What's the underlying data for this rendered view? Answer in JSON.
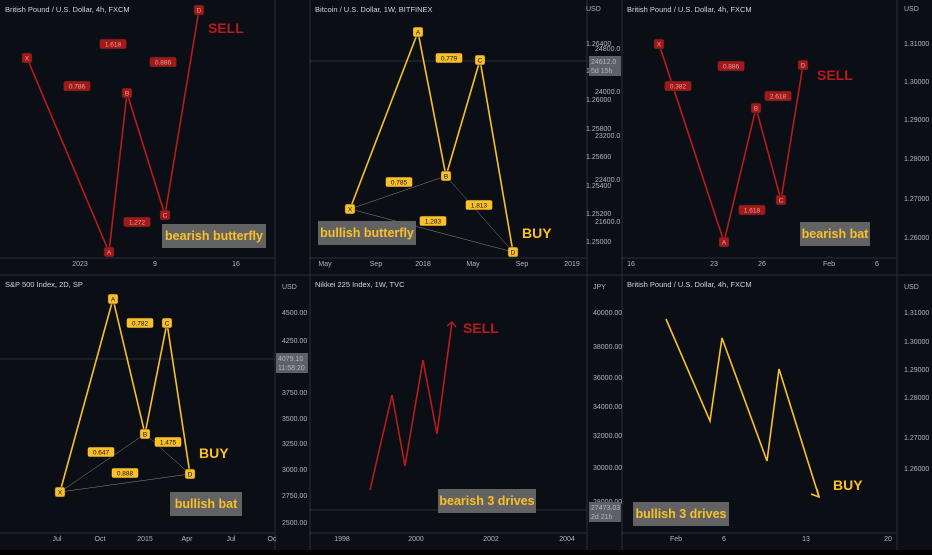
{
  "colors": {
    "background": "#0c0e15",
    "bearish": "#b71c1c",
    "bullish": "#f9c02a",
    "badge_bull_fill": "#f9c02a",
    "badge_bear_fill": "#a01a1a",
    "caption_box": "#6b6b6b",
    "caption_text": "#f9c02a"
  },
  "chart_data": [
    {
      "id": "p1",
      "type": "line",
      "header": "British Pound / U.S. Dollar, 4h, FXCM",
      "x_ticks": [
        "2023",
        "9",
        "16"
      ],
      "y_ticks": [],
      "unit_label": "",
      "color": "bearish",
      "points": [
        "X",
        "A",
        "B",
        "C",
        "D"
      ],
      "ratios": [
        "0.786",
        "1.618",
        "0.886",
        "1.272"
      ],
      "signal": "SELL",
      "caption": "bearish butterfly"
    },
    {
      "id": "p2",
      "type": "line",
      "header": "Bitcoin / U.S. Dollar, 1W, BITFINEX",
      "x_ticks": [
        "May",
        "Sep",
        "2018",
        "May",
        "Sep",
        "2019"
      ],
      "y_ticks": [
        "1.26400",
        "1.26200",
        "1.26000",
        "1.25800",
        "1.25600",
        "1.25400",
        "1.25200",
        "1.25000"
      ],
      "unit_label": "USD",
      "color": "bullish",
      "points": [
        "X",
        "A",
        "B",
        "C",
        "D"
      ],
      "ratios": [
        "0.785",
        "0.779",
        "1.813",
        "1.283"
      ],
      "signal": "BUY",
      "caption": "bullish butterfly"
    },
    {
      "id": "p3",
      "type": "line",
      "header": "British Pound / U.S. Dollar, 4h, FXCM",
      "x_ticks": [
        "16",
        "23",
        "26",
        "Feb",
        "6"
      ],
      "y_ticks": [
        "1.31000",
        "1.30000",
        "1.29000",
        "1.28000",
        "1.27000",
        "1.26000"
      ],
      "right_axis_left": [
        "24800.0",
        "24000.0",
        "23200.0",
        "22400.0",
        "21600.0"
      ],
      "price_tag": {
        "value": "24612.0",
        "countdown": "5d 15h"
      },
      "unit_label": "USD",
      "color": "bearish",
      "points": [
        "X",
        "A",
        "B",
        "C",
        "D"
      ],
      "ratios": [
        "0.382",
        "0.886",
        "1.618",
        "2.618"
      ],
      "signal": "SELL",
      "caption": "bearish bat"
    },
    {
      "id": "p4",
      "type": "line",
      "header": "S&P 500 Index, 2D, SP",
      "x_ticks": [
        "Jul",
        "Oct",
        "2015",
        "Apr",
        "Jul",
        "Oc"
      ],
      "y_ticks": [
        "4500.00",
        "4250.00",
        "4000.00",
        "3750.00",
        "3500.00",
        "3250.00",
        "3000.00",
        "2750.00",
        "2500.00"
      ],
      "price_tag": {
        "value": "4079.10",
        "countdown": "11:58:20"
      },
      "unit_label": "USD",
      "color": "bullish",
      "points": [
        "X",
        "A",
        "B",
        "C",
        "D"
      ],
      "ratios": [
        "0.647",
        "0.782",
        "1.475",
        "0.888"
      ],
      "signal": "BUY",
      "caption": "bullish bat"
    },
    {
      "id": "p5",
      "type": "line",
      "header": "Nikkei 225 Index, 1W, TVC",
      "x_ticks": [
        "1998",
        "2000",
        "2002",
        "2004"
      ],
      "y_ticks": [
        "40000.00",
        "38000.00",
        "36000.00",
        "34000.00",
        "32000.00",
        "30000.00",
        "28000.00"
      ],
      "price_tag": {
        "value": "27473.03",
        "countdown": "2d 21h"
      },
      "unit_label": "JPY",
      "color": "bearish",
      "signal": "SELL",
      "caption": "bearish 3 drives"
    },
    {
      "id": "p6",
      "type": "line",
      "header": "British Pound / U.S. Dollar, 4h, FXCM",
      "x_ticks": [
        "Feb",
        "6",
        "13",
        "20"
      ],
      "y_ticks": [
        "1.31000",
        "1.30000",
        "1.29000",
        "1.28000",
        "1.27000",
        "1.26000"
      ],
      "unit_label": "USD",
      "color": "bullish",
      "signal": "BUY",
      "caption": "bullish 3 drives"
    }
  ]
}
